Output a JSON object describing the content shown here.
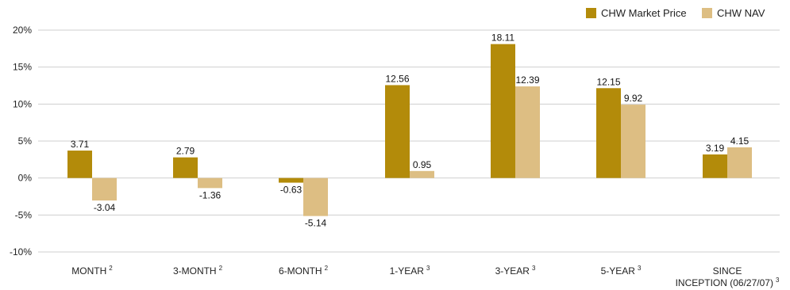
{
  "chart_data": {
    "type": "bar",
    "categories": [
      {
        "label": "MONTH",
        "sup": "2"
      },
      {
        "label": "3-MONTH",
        "sup": "2"
      },
      {
        "label": "6-MONTH",
        "sup": "2"
      },
      {
        "label": "1-YEAR",
        "sup": "3"
      },
      {
        "label": "3-YEAR",
        "sup": "3"
      },
      {
        "label": "5-YEAR",
        "sup": "3"
      },
      {
        "label": "SINCE",
        "label2": "INCEPTION (06/27/07)",
        "sup": "3"
      }
    ],
    "series": [
      {
        "name": "CHW Market Price",
        "color": "#B38B0A",
        "values": [
          3.71,
          2.79,
          -0.63,
          12.56,
          18.11,
          12.15,
          3.19
        ]
      },
      {
        "name": "CHW NAV",
        "color": "#DDBE83",
        "values": [
          -3.04,
          -1.36,
          -5.14,
          0.95,
          12.39,
          9.92,
          4.15
        ]
      }
    ],
    "y_ticks": [
      "20%",
      "15%",
      "10%",
      "5%",
      "0%",
      "-5%",
      "-10%"
    ],
    "ylim": [
      -10,
      20
    ],
    "grid": true,
    "legend_position": "top-right",
    "title": "",
    "xlabel": "",
    "ylabel": ""
  }
}
